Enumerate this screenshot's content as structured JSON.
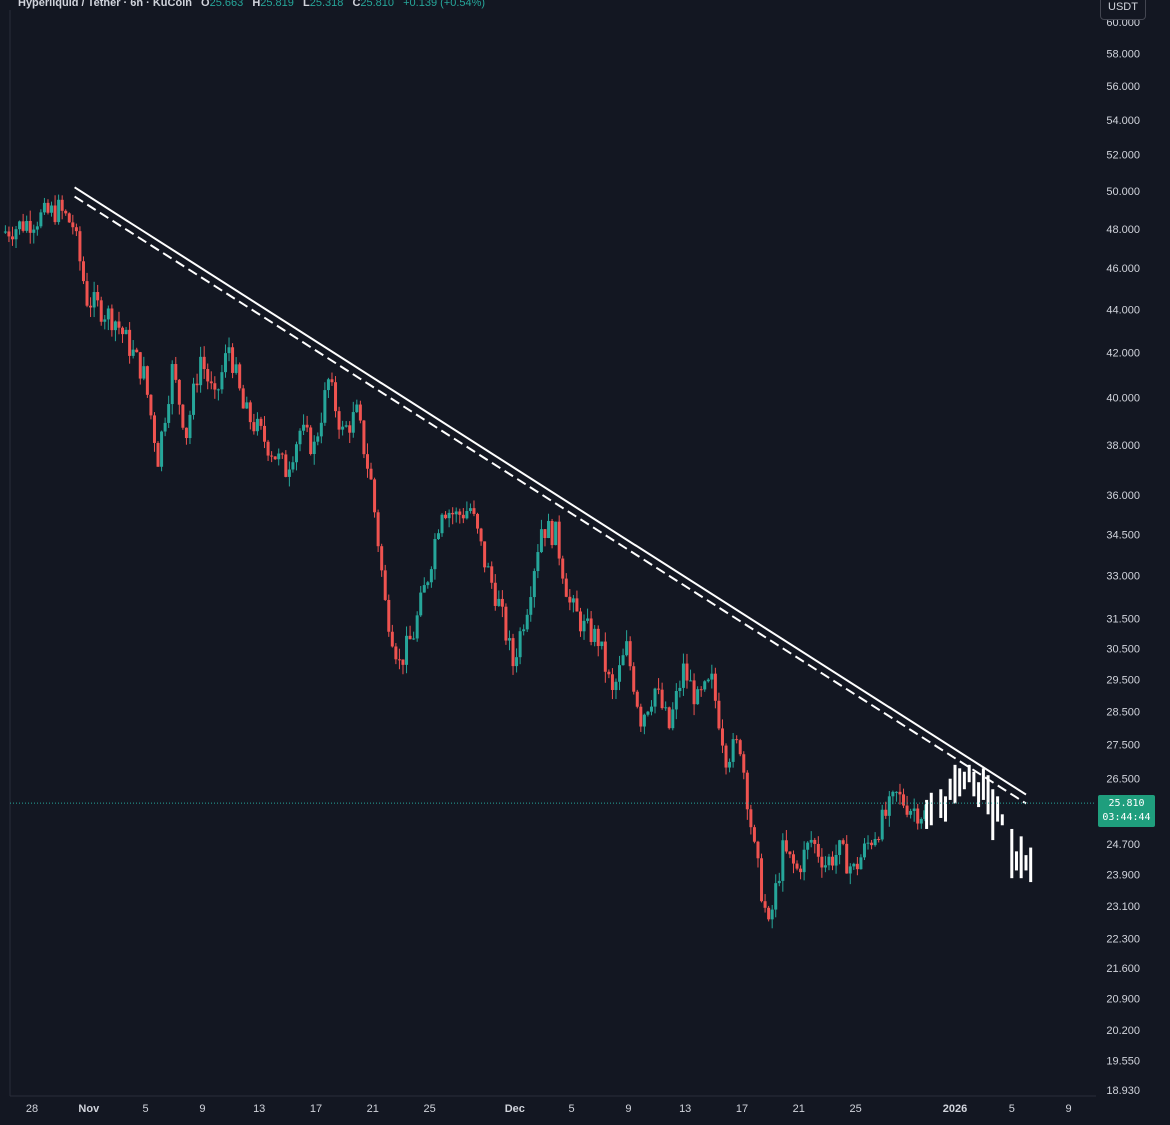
{
  "header": {
    "symbol": "Hyperliquid / Tether",
    "interval": "6h",
    "exchange": "KuCoin",
    "title": "Hyperliquid / Tether · 6h · KuCoin",
    "o_label": "O",
    "o_value": "25.663",
    "h_label": "H",
    "h_value": "25.819",
    "l_label": "L",
    "l_value": "25.318",
    "c_label": "C",
    "c_value": "25.810",
    "change": "+0.139 (+0.54%)"
  },
  "currency_button": "USDT",
  "last_price": {
    "price": "25.810",
    "countdown": "03:44:44"
  },
  "colors": {
    "background": "#131722",
    "up": "#26a69a",
    "down": "#ef5350",
    "projection": "#ffffff",
    "trendline": "#ffffff",
    "axis_text": "#d1d4dc",
    "price_tag": "#1f9e7d"
  },
  "chart_data": {
    "type": "candlestick",
    "scale": "log",
    "y_ticks": [
      "60.000",
      "58.000",
      "56.000",
      "54.000",
      "52.000",
      "50.000",
      "48.000",
      "46.000",
      "44.000",
      "42.000",
      "40.000",
      "38.000",
      "36.000",
      "34.500",
      "33.000",
      "31.500",
      "30.500",
      "29.500",
      "28.500",
      "27.500",
      "26.500",
      "24.700",
      "23.900",
      "23.100",
      "22.300",
      "21.600",
      "20.900",
      "20.200",
      "19.550",
      "18.930"
    ],
    "x_ticks": [
      "28",
      "Nov",
      "5",
      "9",
      "13",
      "17",
      "21",
      "25",
      "Dec",
      "5",
      "9",
      "13",
      "17",
      "21",
      "25",
      "2026",
      "5",
      "9"
    ],
    "ylim": [
      18.6,
      60.5
    ],
    "trendlines": [
      {
        "style": "solid",
        "from": {
          "date": "Oct 31",
          "price": 50.2
        },
        "to": {
          "date": "Jan 6",
          "price": 26.05
        }
      },
      {
        "style": "dashed",
        "from": {
          "date": "Oct 31",
          "price": 49.7
        },
        "to": {
          "date": "Jan 6",
          "price": 25.8
        }
      }
    ],
    "anchors": [
      {
        "date": "Oct 26",
        "price": 47.8
      },
      {
        "date": "Oct 30",
        "price": 49.0
      },
      {
        "date": "Oct 31",
        "price": 48.2
      },
      {
        "date": "Nov 1",
        "price": 44.5
      },
      {
        "date": "Nov 3",
        "price": 43.5
      },
      {
        "date": "Nov 5",
        "price": 41.0
      },
      {
        "date": "Nov 6",
        "price": 37.5
      },
      {
        "date": "Nov 7",
        "price": 41.2
      },
      {
        "date": "Nov 8",
        "price": 38.5
      },
      {
        "date": "Nov 9",
        "price": 41.8
      },
      {
        "date": "Nov 10",
        "price": 39.8
      },
      {
        "date": "Nov 11",
        "price": 42.3
      },
      {
        "date": "Nov 12",
        "price": 39.5
      },
      {
        "date": "Nov 14",
        "price": 37.8
      },
      {
        "date": "Nov 15",
        "price": 37.0
      },
      {
        "date": "Nov 16",
        "price": 38.6
      },
      {
        "date": "Nov 17",
        "price": 37.9
      },
      {
        "date": "Nov 18",
        "price": 40.7
      },
      {
        "date": "Nov 19",
        "price": 38.5
      },
      {
        "date": "Nov 20",
        "price": 39.3
      },
      {
        "date": "Nov 21",
        "price": 36.5
      },
      {
        "date": "Nov 22",
        "price": 32.0
      },
      {
        "date": "Nov 23",
        "price": 30.0
      },
      {
        "date": "Nov 24",
        "price": 31.0
      },
      {
        "date": "Nov 25",
        "price": 33.0
      },
      {
        "date": "Nov 26",
        "price": 35.6
      },
      {
        "date": "Nov 27",
        "price": 35.2
      },
      {
        "date": "Nov 28",
        "price": 35.5
      },
      {
        "date": "Nov 29",
        "price": 33.5
      },
      {
        "date": "Nov 30",
        "price": 32.0
      },
      {
        "date": "Dec 1",
        "price": 30.0
      },
      {
        "date": "Dec 2",
        "price": 32.0
      },
      {
        "date": "Dec 3",
        "price": 34.8
      },
      {
        "date": "Dec 4",
        "price": 34.5
      },
      {
        "date": "Dec 5",
        "price": 32.0
      },
      {
        "date": "Dec 6",
        "price": 31.2
      },
      {
        "date": "Dec 7",
        "price": 30.8
      },
      {
        "date": "Dec 8",
        "price": 29.0
      },
      {
        "date": "Dec 9",
        "price": 30.5
      },
      {
        "date": "Dec 10",
        "price": 28.3
      },
      {
        "date": "Dec 11",
        "price": 29.2
      },
      {
        "date": "Dec 12",
        "price": 28.0
      },
      {
        "date": "Dec 13",
        "price": 29.8
      },
      {
        "date": "Dec 14",
        "price": 28.8
      },
      {
        "date": "Dec 15",
        "price": 29.4
      },
      {
        "date": "Dec 16",
        "price": 27.2
      },
      {
        "date": "Dec 17",
        "price": 27.5
      },
      {
        "date": "Dec 18",
        "price": 24.5
      },
      {
        "date": "Dec 19",
        "price": 22.5
      },
      {
        "date": "Dec 20",
        "price": 24.5
      },
      {
        "date": "Dec 21",
        "price": 24.0
      },
      {
        "date": "Dec 22",
        "price": 24.8
      },
      {
        "date": "Dec 23",
        "price": 24.2
      },
      {
        "date": "Dec 24",
        "price": 24.5
      },
      {
        "date": "Dec 25",
        "price": 24.0
      },
      {
        "date": "Dec 26",
        "price": 24.7
      },
      {
        "date": "Dec 27",
        "price": 25.3
      },
      {
        "date": "Dec 28",
        "price": 26.0
      },
      {
        "date": "Dec 29",
        "price": 25.7
      },
      {
        "date": "Dec 30",
        "price": 25.5
      }
    ],
    "projection": [
      {
        "date": "Dec 30",
        "high": 25.9,
        "low": 25.1
      },
      {
        "date": "Dec 30",
        "high": 26.1,
        "low": 25.2
      },
      {
        "date": "Dec 31",
        "high": 26.2,
        "low": 25.4
      },
      {
        "date": "Dec 31",
        "high": 26.0,
        "low": 25.3
      },
      {
        "date": "Dec 31",
        "high": 26.5,
        "low": 25.9
      },
      {
        "date": "Jan 1",
        "high": 26.9,
        "low": 25.8
      },
      {
        "date": "Jan 1",
        "high": 26.8,
        "low": 26.0
      },
      {
        "date": "Jan 1",
        "high": 26.7,
        "low": 26.2
      },
      {
        "date": "Jan 2",
        "high": 26.9,
        "low": 26.4
      },
      {
        "date": "Jan 2",
        "high": 26.7,
        "low": 26.0
      },
      {
        "date": "Jan 2",
        "high": 26.4,
        "low": 25.7
      },
      {
        "date": "Jan 3",
        "high": 26.8,
        "low": 25.9
      },
      {
        "date": "Jan 3",
        "high": 26.6,
        "low": 25.5
      },
      {
        "date": "Jan 3",
        "high": 26.2,
        "low": 24.8
      },
      {
        "date": "Jan 4",
        "high": 26.0,
        "low": 25.3
      },
      {
        "date": "Jan 4",
        "high": 25.5,
        "low": 25.2
      },
      {
        "date": "Jan 5",
        "high": 25.1,
        "low": 23.8
      },
      {
        "date": "Jan 5",
        "high": 24.5,
        "low": 24.0
      },
      {
        "date": "Jan 5",
        "high": 24.9,
        "low": 23.8
      },
      {
        "date": "Jan 6",
        "high": 24.4,
        "low": 24.0
      },
      {
        "date": "Jan 6",
        "high": 24.6,
        "low": 23.7
      }
    ]
  }
}
